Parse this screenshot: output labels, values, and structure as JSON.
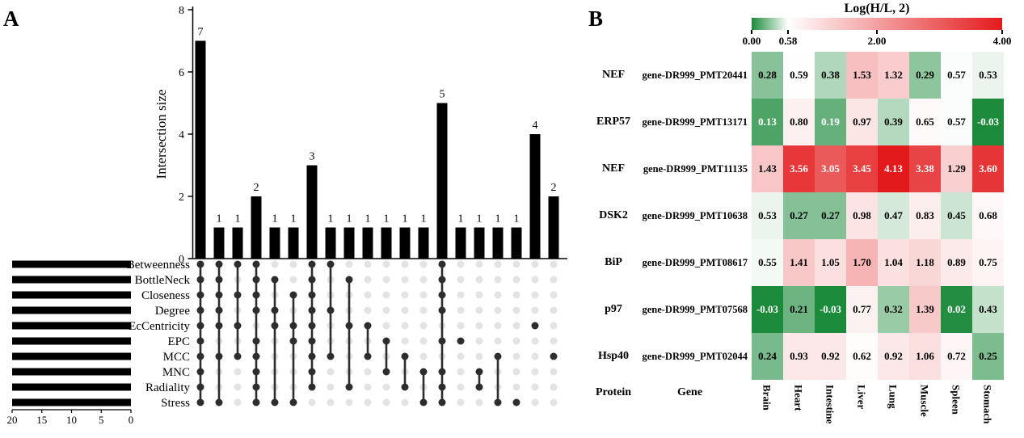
{
  "panels": {
    "a_label": "A",
    "b_label": "B"
  },
  "chart_data": [
    {
      "type": "upset",
      "panel": "A",
      "ylabel": "Intersection size",
      "ylim": [
        0,
        8
      ],
      "yticks": [
        0,
        2,
        4,
        6,
        8
      ],
      "set_axis_ticks": [
        20,
        15,
        10,
        5,
        0
      ],
      "sets": [
        {
          "name": "Betweenness",
          "size": 20
        },
        {
          "name": "BottleNeck",
          "size": 20
        },
        {
          "name": "Closeness",
          "size": 20
        },
        {
          "name": "Degree",
          "size": 20
        },
        {
          "name": "EcCentricity",
          "size": 20
        },
        {
          "name": "EPC",
          "size": 20
        },
        {
          "name": "MCC",
          "size": 20
        },
        {
          "name": "MNC",
          "size": 20
        },
        {
          "name": "Radiality",
          "size": 20
        },
        {
          "name": "Stress",
          "size": 20
        }
      ],
      "intersections": [
        {
          "size": 7,
          "sets": [
            "Betweenness",
            "BottleNeck",
            "Closeness",
            "Degree",
            "EcCentricity",
            "EPC",
            "MCC",
            "MNC",
            "Radiality",
            "Stress"
          ]
        },
        {
          "size": 1,
          "sets": [
            "Betweenness",
            "BottleNeck",
            "Closeness",
            "Degree",
            "EcCentricity",
            "MCC",
            "Stress"
          ]
        },
        {
          "size": 1,
          "sets": [
            "Betweenness",
            "Closeness",
            "EcCentricity",
            "MCC"
          ]
        },
        {
          "size": 2,
          "sets": [
            "Betweenness",
            "BottleNeck",
            "Closeness",
            "Degree",
            "EPC",
            "MCC",
            "MNC",
            "Radiality",
            "Stress"
          ]
        },
        {
          "size": 1,
          "sets": [
            "BottleNeck",
            "Degree",
            "EcCentricity",
            "Stress"
          ]
        },
        {
          "size": 1,
          "sets": [
            "Closeness",
            "EcCentricity",
            "EPC",
            "Stress"
          ]
        },
        {
          "size": 3,
          "sets": [
            "Betweenness",
            "BottleNeck",
            "Closeness",
            "Degree",
            "EcCentricity",
            "EPC",
            "MCC",
            "MNC",
            "Radiality"
          ]
        },
        {
          "size": 1,
          "sets": [
            "Betweenness",
            "Degree",
            "MCC"
          ]
        },
        {
          "size": 1,
          "sets": [
            "BottleNeck",
            "EcCentricity",
            "Radiality"
          ]
        },
        {
          "size": 1,
          "sets": [
            "EcCentricity",
            "MCC"
          ]
        },
        {
          "size": 1,
          "sets": [
            "EPC",
            "MNC"
          ]
        },
        {
          "size": 1,
          "sets": [
            "MCC",
            "Radiality"
          ]
        },
        {
          "size": 1,
          "sets": [
            "MNC",
            "Stress"
          ]
        },
        {
          "size": 5,
          "sets": [
            "Betweenness",
            "BottleNeck",
            "Closeness",
            "Degree",
            "EPC",
            "MNC",
            "Radiality",
            "Stress"
          ]
        },
        {
          "size": 1,
          "sets": [
            "EPC"
          ]
        },
        {
          "size": 1,
          "sets": [
            "MNC",
            "Radiality"
          ]
        },
        {
          "size": 1,
          "sets": [
            "MCC",
            "Stress"
          ]
        },
        {
          "size": 1,
          "sets": [
            "Stress"
          ]
        },
        {
          "size": 4,
          "sets": [
            "EcCentricity"
          ]
        },
        {
          "size": 2,
          "sets": [
            "MCC"
          ]
        }
      ]
    },
    {
      "type": "heatmap",
      "panel": "B",
      "title": "Log(H/L, 2)",
      "legend_tick_labels": [
        "0.00",
        "0.58",
        "2.00",
        "4.00"
      ],
      "legend_tick_values": [
        0,
        0.58,
        2,
        4
      ],
      "colormap": {
        "low": "#1b8a3a",
        "mid": "#ffffff",
        "high": "#e31a1c",
        "min_value": 0,
        "mid_value": 0.58,
        "max_value": 4
      },
      "row_header": "Protein",
      "gene_header": "Gene",
      "columns": [
        "Brain",
        "Heart",
        "Intestine",
        "Liver",
        "Lung",
        "Muscle",
        "Spleen",
        "Stomach"
      ],
      "rows": [
        {
          "protein": "NEF",
          "gene": "gene-DR999_PMT20441",
          "values": [
            0.28,
            0.59,
            0.38,
            1.53,
            1.32,
            0.29,
            0.57,
            0.53
          ]
        },
        {
          "protein": "ERP57",
          "gene": "gene-DR999_PMT13171",
          "values": [
            0.13,
            0.8,
            0.19,
            0.97,
            0.39,
            0.65,
            0.57,
            -0.03
          ]
        },
        {
          "protein": "NEF",
          "gene": "gene-DR999_PMT11135",
          "values": [
            1.43,
            3.56,
            3.05,
            3.45,
            4.13,
            3.38,
            1.29,
            3.6
          ]
        },
        {
          "protein": "DSK2",
          "gene": "gene-DR999_PMT10638",
          "values": [
            0.53,
            0.27,
            0.27,
            0.98,
            0.47,
            0.83,
            0.45,
            0.68
          ]
        },
        {
          "protein": "BiP",
          "gene": "gene-DR999_PMT08617",
          "values": [
            0.55,
            1.41,
            1.05,
            1.7,
            1.04,
            1.18,
            0.89,
            0.75
          ]
        },
        {
          "protein": "p97",
          "gene": "gene-DR999_PMT07568",
          "values": [
            -0.03,
            0.21,
            -0.03,
            0.77,
            0.32,
            1.39,
            0.02,
            0.43
          ]
        },
        {
          "protein": "Hsp40",
          "gene": "gene-DR999_PMT02044",
          "values": [
            0.24,
            0.93,
            0.92,
            0.62,
            0.92,
            1.06,
            0.72,
            0.25
          ]
        }
      ]
    }
  ]
}
